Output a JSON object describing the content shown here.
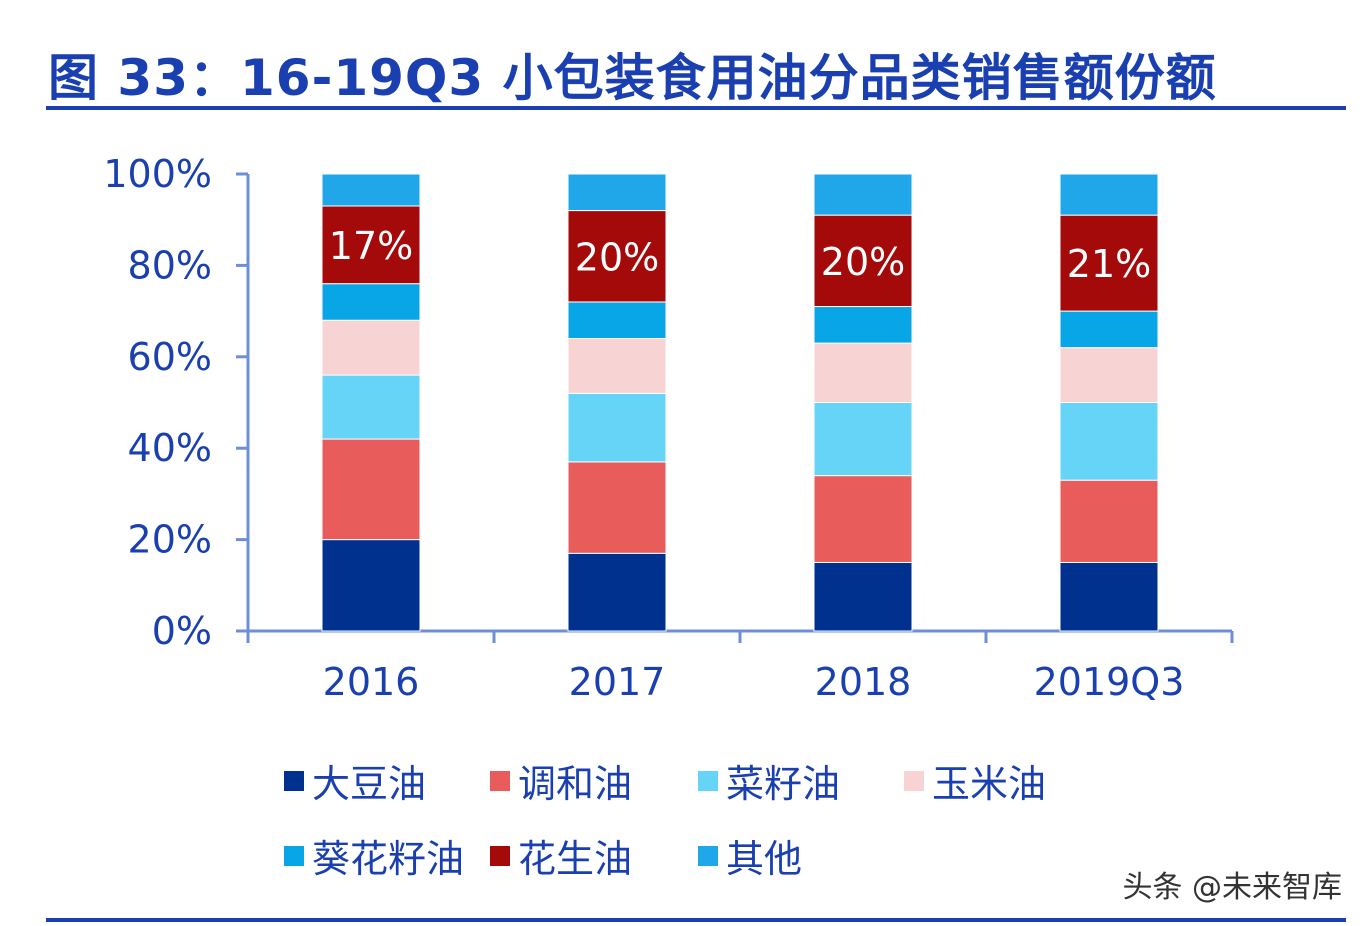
{
  "title": "图 33：16-19Q3 小包装食用油分品类销售额份额",
  "watermark": "头条 @未来智库",
  "chart_data": {
    "type": "bar",
    "stacked": true,
    "normalized": true,
    "categories": [
      "2016",
      "2017",
      "2018",
      "2019Q3"
    ],
    "yticks": [
      "0%",
      "20%",
      "40%",
      "60%",
      "80%",
      "100%"
    ],
    "ylim": [
      0,
      100
    ],
    "grid": false,
    "legend_placement": "bottom",
    "series": [
      {
        "name": "大豆油",
        "color": "#00318f",
        "values": [
          20,
          17,
          15,
          15
        ]
      },
      {
        "name": "调和油",
        "color": "#e85c5c",
        "values": [
          22,
          20,
          19,
          18
        ]
      },
      {
        "name": "菜籽油",
        "color": "#66d4f7",
        "values": [
          14,
          15,
          16,
          17
        ]
      },
      {
        "name": "玉米油",
        "color": "#f8d3d3",
        "values": [
          12,
          12,
          13,
          12
        ]
      },
      {
        "name": "葵花籽油",
        "color": "#08a6e6",
        "values": [
          8,
          8,
          8,
          8
        ]
      },
      {
        "name": "花生油",
        "color": "#a50a0a",
        "values": [
          17,
          20,
          20,
          21
        ],
        "labels": [
          "17%",
          "20%",
          "20%",
          "21%"
        ]
      },
      {
        "name": "其他",
        "color": "#20a7ea",
        "values": [
          7,
          8,
          9,
          9
        ]
      }
    ]
  }
}
